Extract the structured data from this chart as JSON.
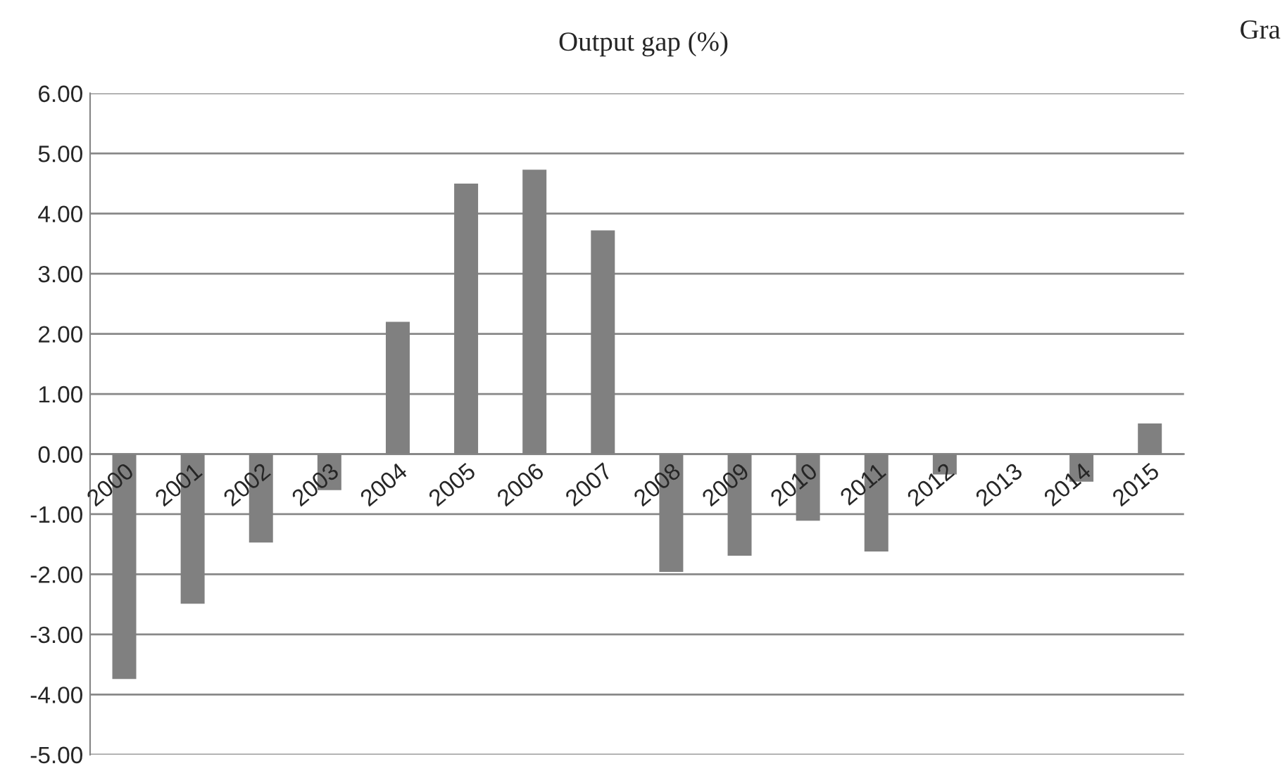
{
  "chart_data": {
    "type": "bar",
    "title": "Output gap (%)",
    "categories": [
      "2000",
      "2001",
      "2002",
      "2003",
      "2004",
      "2005",
      "2006",
      "2007",
      "2008",
      "2009",
      "2010",
      "2011",
      "2012",
      "2013",
      "2014",
      "2015"
    ],
    "values": [
      -3.74,
      -2.49,
      -1.47,
      -0.6,
      2.2,
      4.5,
      4.73,
      3.72,
      -1.96,
      -1.69,
      -1.11,
      -1.62,
      -0.34,
      0,
      -0.46,
      0.51
    ],
    "color": "#808080",
    "ylim": [
      -5,
      6
    ],
    "yticks": [
      {
        "value": -5,
        "label": "-5.00"
      },
      {
        "value": -4,
        "label": "-4.00"
      },
      {
        "value": -3,
        "label": "-3.00"
      },
      {
        "value": -2,
        "label": "-2.00"
      },
      {
        "value": -1,
        "label": "-1.00"
      },
      {
        "value": 0,
        "label": "0.00"
      },
      {
        "value": 1,
        "label": "1.00"
      },
      {
        "value": 2,
        "label": "2.00"
      },
      {
        "value": 3,
        "label": "3.00"
      },
      {
        "value": 4,
        "label": "4.00"
      },
      {
        "value": 5,
        "label": "5.00"
      },
      {
        "value": 6,
        "label": "6.00"
      }
    ],
    "grid": "y",
    "annotations": [
      "Gra"
    ]
  }
}
